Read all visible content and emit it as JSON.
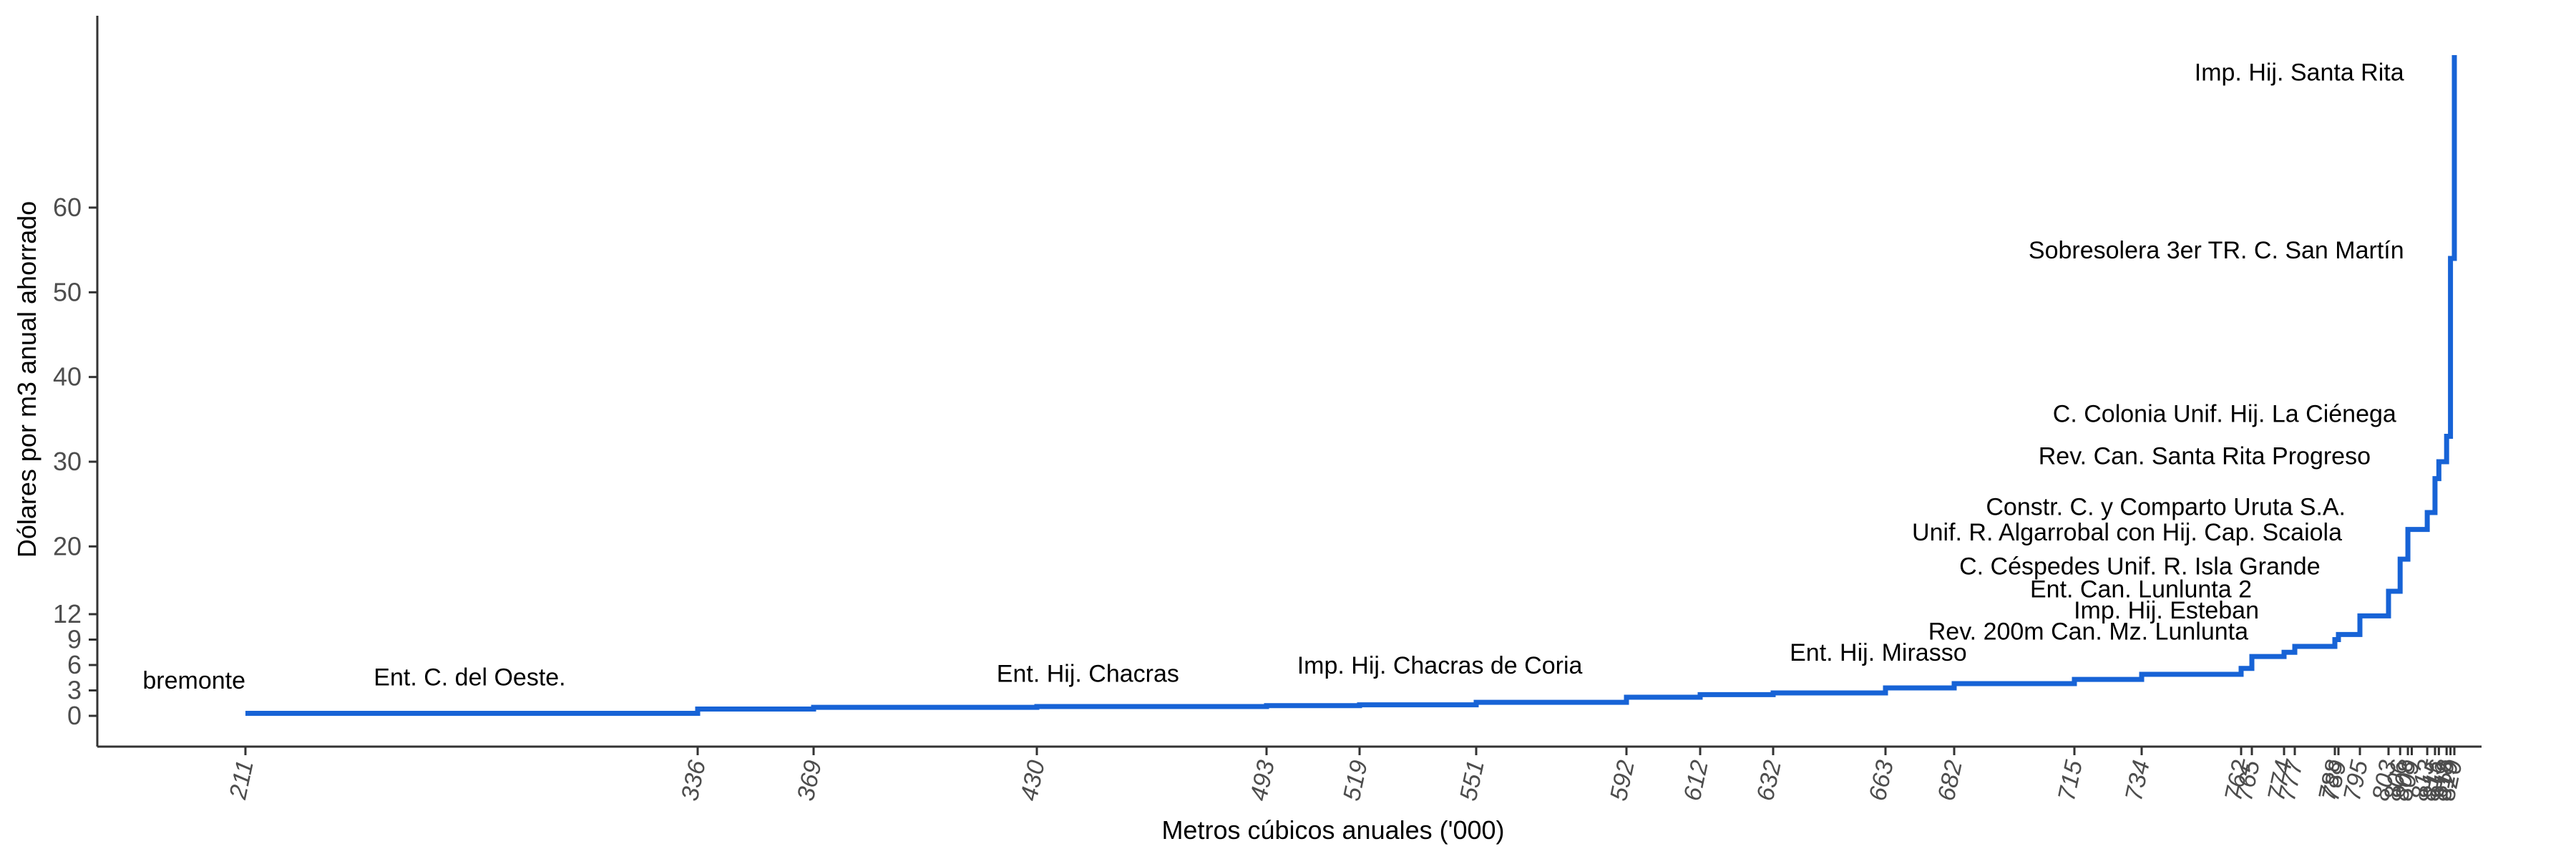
{
  "chart_data": {
    "type": "line",
    "step": true,
    "xlabel": "Metros cúbicos anuales ('000)",
    "ylabel": "Dólares por m3 anual ahorrado",
    "series_color": "#1763d6",
    "yticks": [
      0,
      3,
      6,
      9,
      12,
      20,
      30,
      40,
      50,
      60
    ],
    "xticks": [
      211,
      336,
      369,
      430,
      493,
      519,
      551,
      592,
      612,
      632,
      663,
      682,
      715,
      734,
      762,
      765,
      774,
      777,
      788,
      789,
      795,
      803,
      806,
      808,
      809,
      813,
      815,
      816,
      818,
      819,
      820
    ],
    "points": [
      {
        "x": 211,
        "y": 0.3
      },
      {
        "x": 336,
        "y": 0.8
      },
      {
        "x": 369,
        "y": 1.0
      },
      {
        "x": 430,
        "y": 1.1
      },
      {
        "x": 493,
        "y": 1.2
      },
      {
        "x": 519,
        "y": 1.3
      },
      {
        "x": 551,
        "y": 1.6
      },
      {
        "x": 592,
        "y": 2.2
      },
      {
        "x": 612,
        "y": 2.5
      },
      {
        "x": 632,
        "y": 2.7
      },
      {
        "x": 663,
        "y": 3.3
      },
      {
        "x": 682,
        "y": 3.8
      },
      {
        "x": 715,
        "y": 4.3
      },
      {
        "x": 734,
        "y": 4.9
      },
      {
        "x": 762,
        "y": 5.6
      },
      {
        "x": 765,
        "y": 7.0
      },
      {
        "x": 774,
        "y": 7.5
      },
      {
        "x": 777,
        "y": 8.2
      },
      {
        "x": 788,
        "y": 9.0
      },
      {
        "x": 789,
        "y": 9.6
      },
      {
        "x": 795,
        "y": 11.8
      },
      {
        "x": 803,
        "y": 14.7
      },
      {
        "x": 806,
        "y": 18.5
      },
      {
        "x": 808,
        "y": 22.0
      },
      {
        "x": 809,
        "y": 22.0
      },
      {
        "x": 813,
        "y": 24.0
      },
      {
        "x": 815,
        "y": 28.0
      },
      {
        "x": 816,
        "y": 30.0
      },
      {
        "x": 818,
        "y": 33.0
      },
      {
        "x": 819,
        "y": 54.0
      },
      {
        "x": 820,
        "y": 78.0
      }
    ],
    "annotations": [
      {
        "text": "bremonte",
        "x": 211,
        "y": 3.2,
        "anchor": "end"
      },
      {
        "text": "Ent. C. del Oeste.",
        "x": 273,
        "y": 3.6,
        "anchor": "middle"
      },
      {
        "text": "Ent. Hij. Chacras",
        "x": 444,
        "y": 4.0,
        "anchor": "middle"
      },
      {
        "text": "Imp. Hij. Chacras de Coria",
        "x": 541,
        "y": 5.0,
        "anchor": "middle"
      },
      {
        "text": "Ent. Hij. Mirasso",
        "x": 661,
        "y": 6.5,
        "anchor": "middle"
      },
      {
        "text": "Rev. 200m Can. Mz. Lunlunta",
        "x": 764,
        "y": 9.0,
        "anchor": "end"
      },
      {
        "text": "Imp. Hij. Esteban",
        "x": 767,
        "y": 11.5,
        "anchor": "end"
      },
      {
        "text": "Ent. Can. Lunlunta 2",
        "x": 765,
        "y": 14.0,
        "anchor": "end"
      },
      {
        "text": "C. Céspedes Unif. R. Isla Grande",
        "x": 784,
        "y": 16.7,
        "anchor": "end"
      },
      {
        "text": "Unif. R. Algarrobal con Hij. Cap. Scaiola",
        "x": 790,
        "y": 20.7,
        "anchor": "end"
      },
      {
        "text": "Constr. C. y Comparto Uruta S.A.",
        "x": 791,
        "y": 23.7,
        "anchor": "end"
      },
      {
        "text": "Rev. Can. Santa Rita Progreso",
        "x": 798,
        "y": 29.7,
        "anchor": "end"
      },
      {
        "text": "C. Colonia Unif. Hij. La Ciénega",
        "x": 805,
        "y": 34.7,
        "anchor": "end"
      },
      {
        "text": "Sobresolera 3er TR. C. San Martín",
        "x": 807,
        "y": 54.0,
        "anchor": "end"
      },
      {
        "text": "Imp. Hij. Santa Rita",
        "x": 807,
        "y": 75.0,
        "anchor": "end"
      }
    ]
  }
}
